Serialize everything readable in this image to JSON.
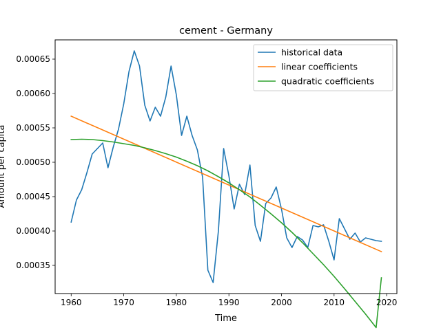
{
  "chart_data": {
    "type": "line",
    "title": "cement - Germany",
    "xlabel": "Time",
    "ylabel": "Amount per capita",
    "xlim": [
      1956.95,
      2021.95
    ],
    "ylim": [
      0.000309,
      0.000678
    ],
    "xticks": [
      1960,
      1970,
      1980,
      1990,
      2000,
      2010,
      2020
    ],
    "xtick_labels": [
      "1960",
      "1970",
      "1980",
      "1990",
      "2000",
      "2010",
      "2020"
    ],
    "yticks": [
      0.00035,
      0.0004,
      0.00045,
      0.0005,
      0.00055,
      0.0006,
      0.00065
    ],
    "ytick_labels": [
      "0.00035",
      "0.00040",
      "0.00045",
      "0.00050",
      "0.00055",
      "0.00060",
      "0.00065"
    ],
    "grid": false,
    "legend_position": "top-right",
    "series": [
      {
        "name": "historical data",
        "color": "#1f77b4",
        "x": [
          1960,
          1961,
          1962,
          1963,
          1964,
          1965,
          1966,
          1967,
          1968,
          1969,
          1970,
          1971,
          1972,
          1973,
          1974,
          1975,
          1976,
          1977,
          1978,
          1979,
          1980,
          1981,
          1982,
          1983,
          1984,
          1985,
          1986,
          1987,
          1988,
          1989,
          1990,
          1991,
          1992,
          1993,
          1994,
          1995,
          1996,
          1997,
          1998,
          1999,
          2000,
          2001,
          2002,
          2003,
          2004,
          2005,
          2006,
          2007,
          2008,
          2009,
          2010,
          2011,
          2012,
          2013,
          2014,
          2015,
          2016,
          2017,
          2018,
          2019
        ],
        "y": [
          0.000413,
          0.000445,
          0.00046,
          0.000485,
          0.000512,
          0.00052,
          0.000528,
          0.000492,
          0.000522,
          0.000548,
          0.000585,
          0.000632,
          0.000662,
          0.00064,
          0.000583,
          0.00056,
          0.00058,
          0.000567,
          0.000595,
          0.00064,
          0.000598,
          0.000539,
          0.000567,
          0.000539,
          0.000518,
          0.000478,
          0.000343,
          0.000325,
          0.0004,
          0.00052,
          0.00048,
          0.000432,
          0.000468,
          0.000453,
          0.000496,
          0.000408,
          0.000385,
          0.00044,
          0.000448,
          0.000464,
          0.000432,
          0.00039,
          0.000376,
          0.000392,
          0.000387,
          0.000376,
          0.000408,
          0.000406,
          0.000409,
          0.000385,
          0.000358,
          0.000418,
          0.000403,
          0.000388,
          0.000397,
          0.000384,
          0.00039,
          0.000388,
          0.000386,
          0.000385
        ]
      },
      {
        "name": "linear coefficients",
        "color": "#ff7f0e",
        "x": [
          1960,
          2019
        ],
        "y": [
          0.000567,
          0.00037
        ]
      },
      {
        "name": "quadratic coefficients",
        "color": "#2ca02c",
        "x": [
          1960,
          1962,
          1964,
          1966,
          1968,
          1970,
          1972,
          1974,
          1976,
          1978,
          1980,
          1982,
          1984,
          1986,
          1988,
          1990,
          1992,
          1994,
          1996,
          1998,
          2000,
          2002,
          2004,
          2006,
          2008,
          2010,
          2012,
          2014,
          2016,
          2018,
          2019
        ],
        "y": [
          0.000533,
          0.0005335,
          0.000533,
          0.0005315,
          0.0005295,
          0.000527,
          0.0005245,
          0.000521,
          0.000517,
          0.0005125,
          0.0005075,
          0.0005015,
          0.000495,
          0.0004875,
          0.000479,
          0.00047,
          0.00046,
          0.0004495,
          0.0004375,
          0.000425,
          0.000412,
          0.000398,
          0.000383,
          0.000367,
          0.000351,
          0.000334,
          0.000316,
          0.0002975,
          0.000279,
          0.0002595,
          0.000332
        ]
      }
    ]
  }
}
